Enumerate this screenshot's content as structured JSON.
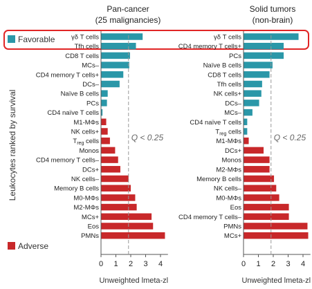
{
  "y_axis_label": "Leukocytes ranked by survival",
  "legend": {
    "favorable": {
      "label": "Favorable",
      "color": "#2a97a8"
    },
    "adverse": {
      "label": "Adverse",
      "color": "#c8282a"
    },
    "highlight_border_color": "#e12525"
  },
  "threshold_label": "Q < 0.25",
  "chart_data": [
    {
      "type": "bar",
      "orientation": "horizontal",
      "title_lines": [
        "Pan-cancer",
        "(25 malignancies)"
      ],
      "xlabel": "Unweighted lmeta-zl",
      "xlim": [
        0,
        4.5
      ],
      "xticks": [
        "0",
        "1",
        "2",
        "3",
        "4"
      ],
      "threshold": 1.85,
      "grid": false,
      "categories": [
        "γδ T cells",
        "Tfh cells",
        "CD8 T cells",
        "MCs–",
        "CD4 memory T cells+",
        "DCs–",
        "Naïve B cells",
        "PCs",
        "CD4 naïve T cells",
        "M1-MΦs",
        "NK cells+",
        "Treg cells",
        "Monos",
        "CD4 memory T cells–",
        "DCs+",
        "NK cells–",
        "Memory B cells",
        "M0-MΦs",
        "M2-MΦs",
        "MCs+",
        "Eos",
        "PMNs"
      ],
      "values": [
        2.8,
        2.35,
        1.95,
        1.9,
        1.5,
        1.25,
        0.45,
        0.4,
        0.1,
        0.35,
        0.45,
        0.6,
        0.95,
        1.15,
        1.3,
        1.85,
        2.0,
        2.3,
        2.4,
        3.4,
        3.5,
        4.3
      ],
      "groups": [
        "favorable",
        "favorable",
        "favorable",
        "favorable",
        "favorable",
        "favorable",
        "favorable",
        "favorable",
        "favorable",
        "adverse",
        "adverse",
        "adverse",
        "adverse",
        "adverse",
        "adverse",
        "adverse",
        "adverse",
        "adverse",
        "adverse",
        "adverse",
        "adverse",
        "adverse"
      ]
    },
    {
      "type": "bar",
      "orientation": "horizontal",
      "title_lines": [
        "Solid tumors",
        "(non-brain)"
      ],
      "xlabel": "Unweighted lmeta-zl",
      "xlim": [
        0,
        4.5
      ],
      "xticks": [
        "0",
        "1",
        "2",
        "3",
        "4"
      ],
      "threshold": 1.85,
      "grid": false,
      "categories": [
        "γδ T cells",
        "CD4 memory T cells+",
        "PCs",
        "Naïve B cells",
        "CD8 T cells",
        "Tfh cells",
        "NK cells+",
        "DCs–",
        "MCs–",
        "CD4 naïve T cells",
        "Treg cells",
        "M1-MΦs",
        "DCs+",
        "Monos",
        "M2-MΦs",
        "Memory B cells",
        "NK cells–",
        "M0-MΦs",
        "Eos",
        "CD4 memory T cells–",
        "PMNs",
        "MCs+"
      ],
      "values": [
        3.7,
        2.7,
        2.7,
        1.95,
        1.75,
        1.25,
        1.2,
        1.05,
        0.6,
        0.25,
        0.25,
        0.35,
        1.35,
        1.75,
        1.75,
        2.05,
        2.2,
        2.4,
        3.05,
        3.05,
        4.3,
        4.35
      ],
      "groups": [
        "favorable",
        "favorable",
        "favorable",
        "favorable",
        "favorable",
        "favorable",
        "favorable",
        "favorable",
        "favorable",
        "favorable",
        "favorable",
        "adverse",
        "adverse",
        "adverse",
        "adverse",
        "adverse",
        "adverse",
        "adverse",
        "adverse",
        "adverse",
        "adverse",
        "adverse"
      ]
    }
  ]
}
